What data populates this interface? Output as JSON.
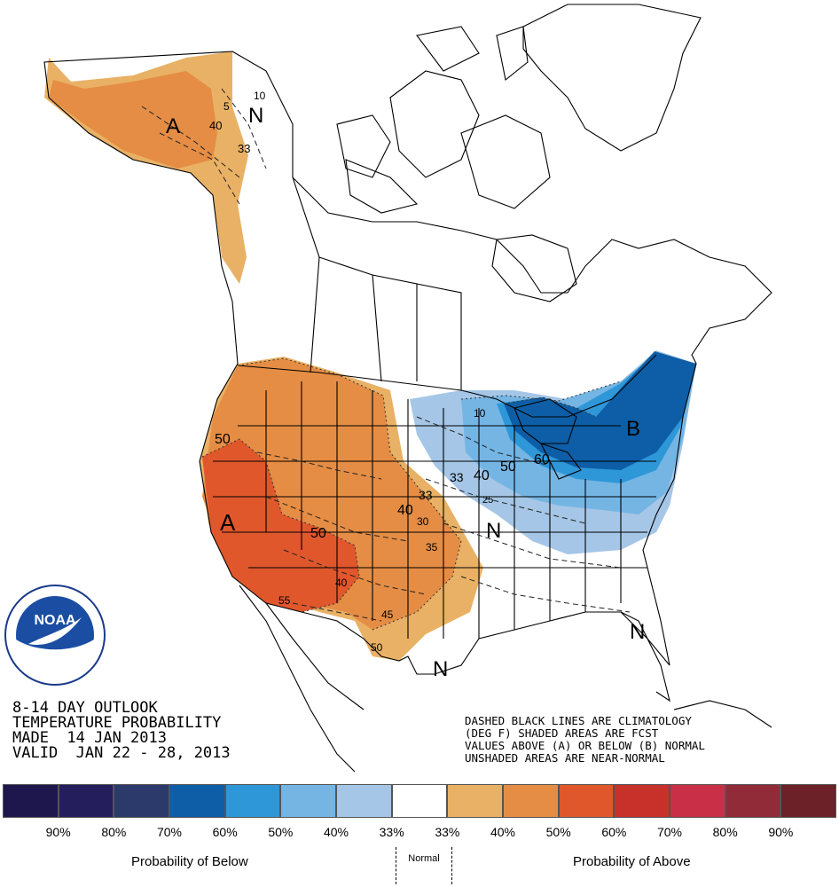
{
  "title": {
    "line1": "8-14 DAY OUTLOOK",
    "line2": "TEMPERATURE PROBABILITY",
    "line3": "MADE  14 JAN 2013",
    "line4": "VALID  JAN 22 - 28, 2013"
  },
  "notes": {
    "line1": "DASHED BLACK LINES ARE CLIMATOLOGY",
    "line2": "(DEG F) SHADED AREAS ARE FCST",
    "line3": "VALUES ABOVE (A) OR BELOW (B) NORMAL",
    "line4": "UNSHADED AREAS ARE NEAR-NORMAL"
  },
  "logo": {
    "name": "NOAA",
    "icon": "noaa-logo"
  },
  "map_labels": {
    "alaska_above": "A",
    "alaska_normal": "N",
    "west_above": "A",
    "east_below": "B",
    "central_normal": "N",
    "texas_normal": "N",
    "florida_normal": "N",
    "prob_50_west": "50",
    "prob_50_southwest": "50",
    "prob_40_plains": "40",
    "prob_33_plains": "33",
    "prob_40_great_lakes": "40",
    "prob_50_great_lakes": "50",
    "prob_60_great_lakes": "60",
    "prob_33_great_lakes": "33",
    "clim_10_ak": "10",
    "clim_40_ak": "40",
    "clim_5_ak": "5",
    "clim_33_ak": "33",
    "clim_10_gl": "10",
    "clim_30": "30",
    "clim_35": "35",
    "clim_40_sw": "40",
    "clim_45": "45",
    "clim_50_tx": "50",
    "clim_55": "55",
    "clim_25": "25"
  },
  "legend": {
    "colors": [
      "#1d174d",
      "#241e5c",
      "#2b3a6b",
      "#0d5ea6",
      "#2e97d8",
      "#74b5e4",
      "#a5c6e6",
      "#ffffff",
      "#e9b165",
      "#e58d44",
      "#e0572c",
      "#c8302a",
      "#c92f47",
      "#922b38",
      "#6b2127"
    ],
    "ticks": [
      "90%",
      "80%",
      "70%",
      "60%",
      "50%",
      "40%",
      "33%",
      "33%",
      "40%",
      "50%",
      "60%",
      "70%",
      "80%",
      "90%"
    ],
    "below_label": "Probability of Below",
    "normal_label": "Normal",
    "above_label": "Probability of Above"
  }
}
